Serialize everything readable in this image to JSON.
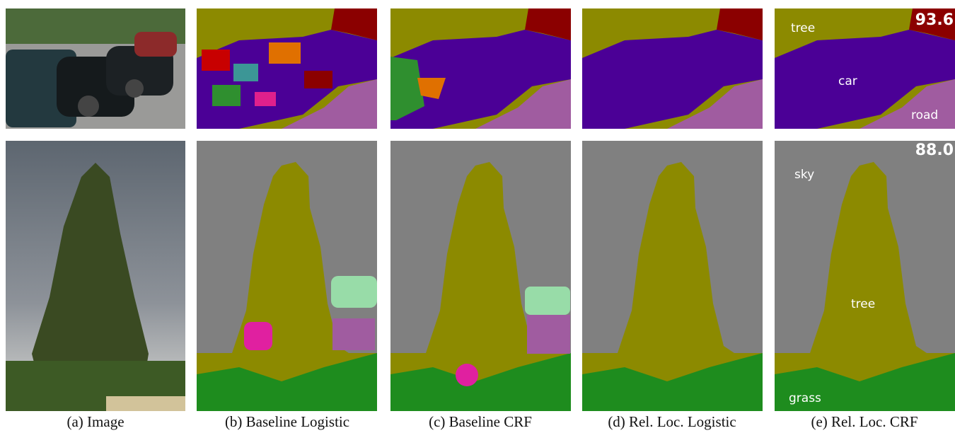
{
  "captions": [
    "(a) Image",
    "(b) Baseline Logistic",
    "(c) Baseline CRF",
    "(d) Rel. Loc. Logistic",
    "(e) Rel. Loc. CRF"
  ],
  "rows": [
    {
      "score": "93.6",
      "labels": [
        "tree",
        "car",
        "road"
      ]
    },
    {
      "score": "88.0",
      "labels": [
        "sky",
        "tree",
        "grass"
      ]
    }
  ]
}
